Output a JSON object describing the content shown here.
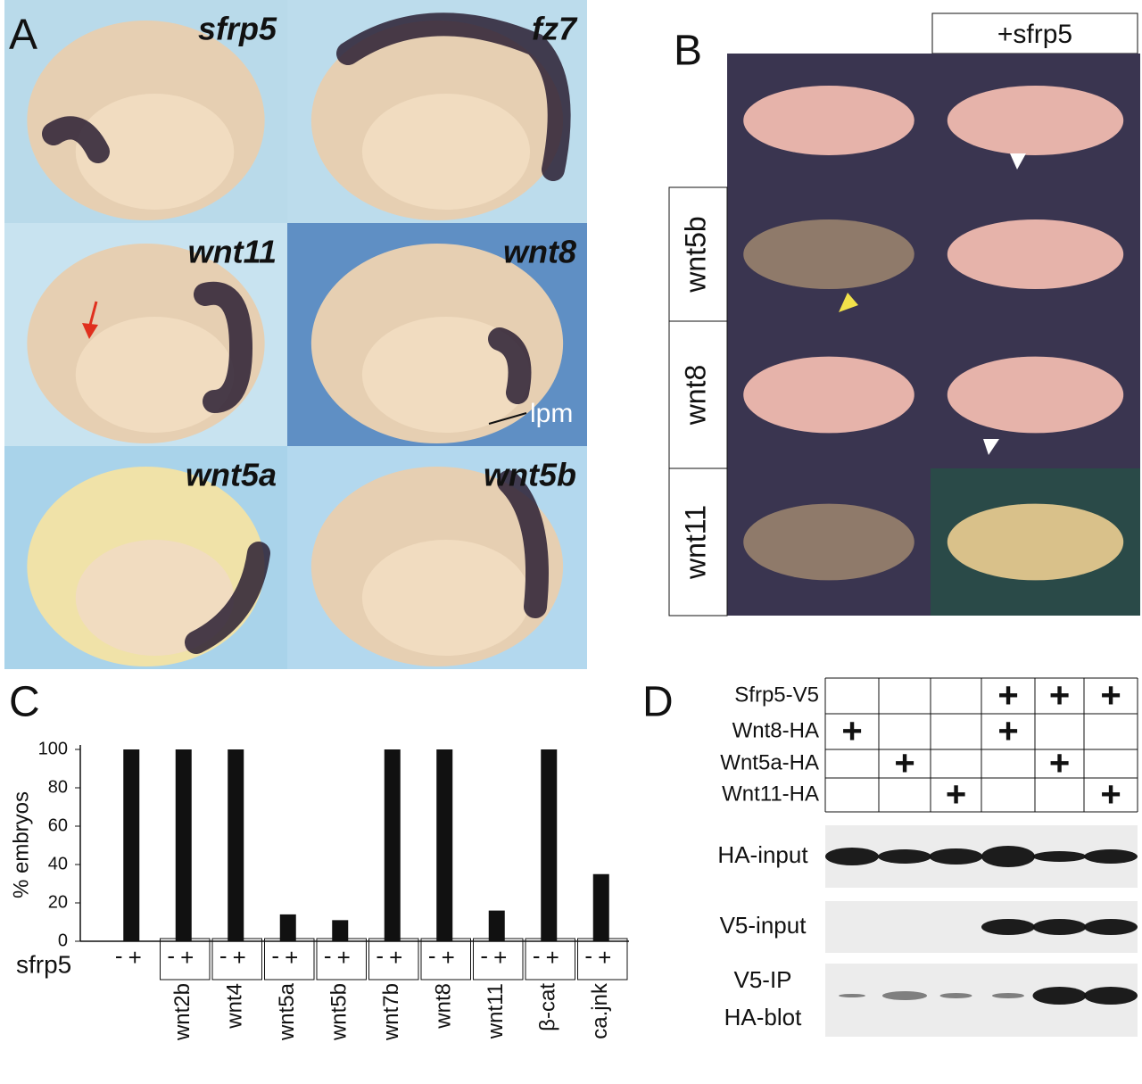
{
  "panel_a": {
    "letter": "A",
    "images": [
      {
        "label": "sfrp5"
      },
      {
        "label": "fz7"
      },
      {
        "label": "wnt11"
      },
      {
        "label": "wnt8"
      },
      {
        "label": "wnt5a"
      },
      {
        "label": "wnt5b"
      }
    ],
    "annotation": "lpm"
  },
  "panel_b": {
    "letter": "B",
    "column_header": "+sfrp5",
    "row_labels": [
      "wnt5b",
      "wnt8",
      "wnt11"
    ]
  },
  "chart_data": {
    "type": "bar",
    "letter": "C",
    "y_label": "% embryos",
    "x_row_label": "sfrp5",
    "minus": "-",
    "plus": "+",
    "categories": [
      null,
      "wnt2b",
      "wnt4",
      "wnt5a",
      "wnt5b",
      "wnt7b",
      "wnt8",
      "wnt11",
      "β-cat",
      "ca.jnk"
    ],
    "values": [
      100,
      100,
      100,
      14,
      11,
      100,
      100,
      16,
      100,
      35
    ],
    "color": "#111111",
    "ylim": [
      0,
      100
    ],
    "yticks": [
      0,
      20,
      40,
      60,
      80,
      100
    ]
  },
  "panel_d": {
    "letter": "D",
    "plus": "+",
    "rows": [
      {
        "label": "Sfrp5-V5",
        "lanes": [
          false,
          false,
          false,
          true,
          true,
          true
        ]
      },
      {
        "label": "Wnt8-HA",
        "lanes": [
          true,
          false,
          false,
          true,
          false,
          false
        ]
      },
      {
        "label": "Wnt5a-HA",
        "lanes": [
          false,
          true,
          false,
          false,
          true,
          false
        ]
      },
      {
        "label": "Wnt11-HA",
        "lanes": [
          false,
          false,
          true,
          false,
          false,
          true
        ]
      }
    ],
    "blots": [
      [
        "HA-input"
      ],
      [
        "V5-input"
      ],
      [
        "V5-IP",
        "HA-blot"
      ]
    ]
  }
}
